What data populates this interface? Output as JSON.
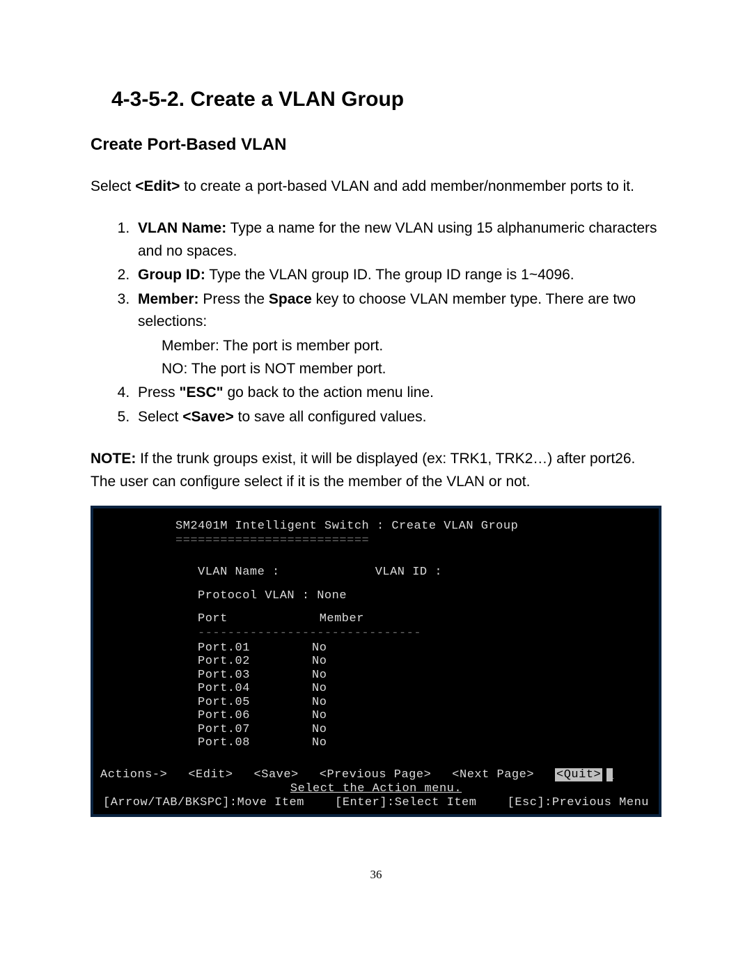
{
  "heading": "4-3-5-2. Create a VLAN Group",
  "subheading": "Create Port-Based VLAN",
  "intro_prefix": "Select  ",
  "intro_edit": "<Edit>",
  "intro_suffix": " to create a port-based VLAN and add member/nonmember ports to it.",
  "list": [
    {
      "bold": "VLAN Name:",
      "text": " Type a name for the new VLAN using 15 alphanumeric characters and no spaces."
    },
    {
      "bold": "Group ID:",
      "text": " Type the VLAN group ID. The group ID range is 1~4096."
    },
    {
      "bold": "Member: ",
      "text_before": " Press the ",
      "bold2": "Space",
      "text_after": " key to choose VLAN member type. There are two selections:",
      "sub": [
        "Member: The port is member port.",
        "NO: The port is NOT member port."
      ]
    },
    {
      "text_before": "Press ",
      "bold": "\"ESC\"",
      "text_after": " go back to the action menu line."
    },
    {
      "text_before": "Select ",
      "bold": "<Save>",
      "text_after": " to save all configured values."
    }
  ],
  "note_bold": "NOTE:",
  "note_text": " If the trunk groups exist, it will be displayed (ex: TRK1, TRK2…) after port26. The user can configure select if it is the member of the VLAN or not.",
  "terminal": {
    "title": "SM2401M Intelligent Switch : Create VLAN Group",
    "divider": "==========================",
    "vlan_name_label": "VLAN Name :",
    "vlan_id_label": "VLAN ID :",
    "protocol_label": "Protocol VLAN : None",
    "col_port": "Port",
    "col_member": "Member",
    "table_divider": "------------------------------",
    "ports": [
      {
        "name": "Port.01",
        "member": "No"
      },
      {
        "name": "Port.02",
        "member": "No"
      },
      {
        "name": "Port.03",
        "member": "No"
      },
      {
        "name": "Port.04",
        "member": "No"
      },
      {
        "name": "Port.05",
        "member": "No"
      },
      {
        "name": "Port.06",
        "member": "No"
      },
      {
        "name": "Port.07",
        "member": "No"
      },
      {
        "name": "Port.08",
        "member": "No"
      }
    ],
    "actions_label": "Actions->",
    "actions": {
      "edit": "<Edit>",
      "save": "<Save>",
      "prev": "<Previous Page>",
      "next": "<Next Page>",
      "quit": "<Quit>"
    },
    "select_msg": "Select the Action menu.",
    "hints": {
      "move": "[Arrow/TAB/BKSPC]:Move Item",
      "select": "[Enter]:Select Item",
      "esc": "[Esc]:Previous Menu"
    }
  },
  "page_number": "36"
}
